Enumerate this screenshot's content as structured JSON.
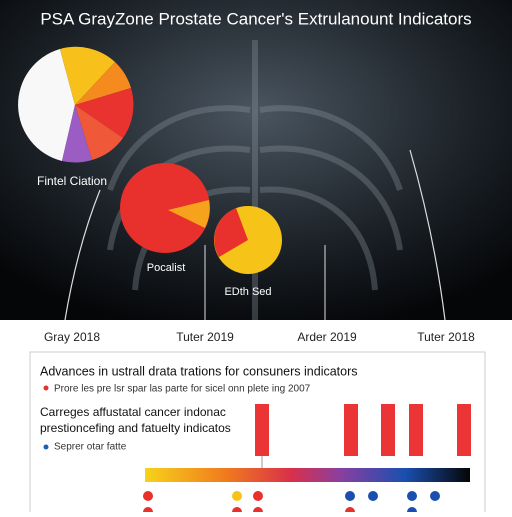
{
  "header": {
    "title": "PSA GrayZone Prostate Cancer's Extrulanount Indicators"
  },
  "figure_labels": [
    "Fintel Ciation",
    "Pocalist",
    "EDth Sed"
  ],
  "timeline": [
    "Gray 2018",
    "Tuter 2019",
    "Arder 2019",
    "Tuter 2018"
  ],
  "panel": {
    "heading": "Advances in ustrall drata trations for consuners indicators",
    "bullet_1": "Prore les pre lsr spar las parte for sicel onn plete ing 2007",
    "subheading": "Carreges affustatal cancer indonac prestioncefing and fatuelty indicatos",
    "bullet_2": "Seprer otar fatte"
  }
}
